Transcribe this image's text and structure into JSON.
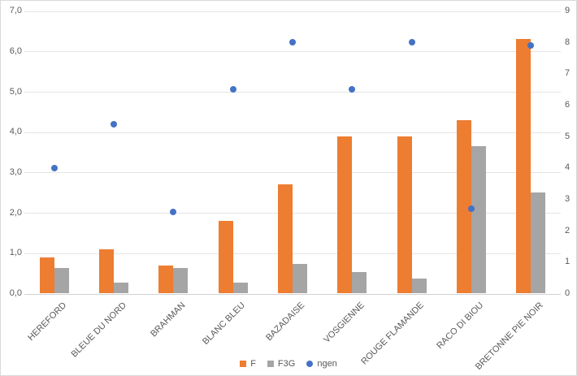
{
  "chart_data": {
    "type": "bar",
    "subtype": "combo-bar-scatter",
    "title": "",
    "categories": [
      "HEREFORD",
      "BLEUE DU NORD",
      "BRAHMAN",
      "BLANC BLEU",
      "BAZADAISE",
      "VOSGIENNE",
      "ROUGE FLAMANDE",
      "RACO DI BIOU",
      "BRETONNE PIE NOIR"
    ],
    "series": [
      {
        "name": "F",
        "type": "bar",
        "axis": "left",
        "color": "#ED7D31",
        "values": [
          0.9,
          1.1,
          0.7,
          1.8,
          2.7,
          3.9,
          3.9,
          4.3,
          6.3
        ]
      },
      {
        "name": "F3G",
        "type": "bar",
        "axis": "left",
        "color": "#A5A5A5",
        "values": [
          0.63,
          0.28,
          0.63,
          0.27,
          0.73,
          0.53,
          0.38,
          3.65,
          2.5
        ]
      },
      {
        "name": "ngen",
        "type": "scatter",
        "axis": "right",
        "color": "#4472C4",
        "values": [
          4.0,
          5.4,
          2.6,
          6.5,
          8.0,
          6.5,
          8.0,
          2.7,
          7.9
        ]
      }
    ],
    "left_axis": {
      "min": 0,
      "max": 7,
      "step": 1,
      "tick_labels": [
        "0,0",
        "1,0",
        "2,0",
        "3,0",
        "4,0",
        "5,0",
        "6,0",
        "7,0"
      ]
    },
    "right_axis": {
      "min": 0,
      "max": 9,
      "step": 1,
      "tick_labels": [
        "0",
        "1",
        "2",
        "3",
        "4",
        "5",
        "6",
        "7",
        "8",
        "9"
      ]
    },
    "grid": "horizontal",
    "legend_position": "bottom",
    "legend": [
      "F",
      "F3G",
      "ngen"
    ]
  },
  "colors": {
    "background": "#FFFFFF",
    "border": "#D9D9D9",
    "gridline": "#E4E4E4",
    "axis_text": "#595959",
    "bar_f": "#ED7D31",
    "bar_f3g": "#A5A5A5",
    "point_ngen": "#4472C4"
  }
}
